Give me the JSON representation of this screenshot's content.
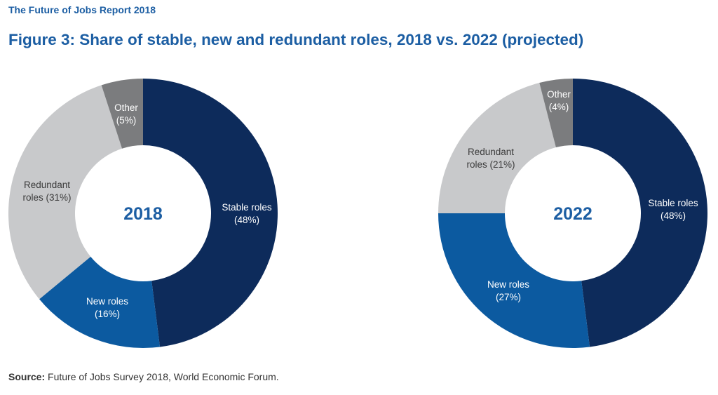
{
  "header": {
    "report_title": "The Future of Jobs Report 2018",
    "figure_title": "Figure 3: Share of stable, new and redundant roles, 2018 vs. 2022 (projected)"
  },
  "footer": {
    "source_label": "Source:",
    "source_text": " Future of Jobs Survey 2018, World Economic Forum."
  },
  "colors": {
    "stable": "#0d2b5b",
    "new": "#0c5aa0",
    "redundant": "#c8c9cb",
    "other": "#7b7c7e",
    "title": "#1c5ea3"
  },
  "chart_data": [
    {
      "type": "pie",
      "center_label": "2018",
      "slices": [
        {
          "key": "stable",
          "label": "Stable roles",
          "pct_text": "(48%)",
          "value": 48
        },
        {
          "key": "new",
          "label": "New roles",
          "pct_text": "(16%)",
          "value": 16
        },
        {
          "key": "redundant",
          "label": "Redundant\nroles (31%)",
          "pct_text": "",
          "value": 31
        },
        {
          "key": "other",
          "label": "Other",
          "pct_text": "(5%)",
          "value": 5
        }
      ]
    },
    {
      "type": "pie",
      "center_label": "2022",
      "slices": [
        {
          "key": "stable",
          "label": "Stable roles",
          "pct_text": "(48%)",
          "value": 48
        },
        {
          "key": "new",
          "label": "New roles",
          "pct_text": "(27%)",
          "value": 27
        },
        {
          "key": "redundant",
          "label": "Redundant",
          "pct_text": "roles (21%)",
          "value": 21
        },
        {
          "key": "other",
          "label": "Other",
          "pct_text": "(4%)",
          "value": 4
        }
      ]
    }
  ]
}
